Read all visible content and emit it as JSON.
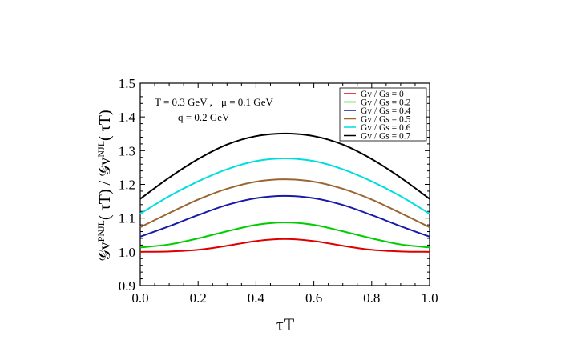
{
  "chart_data": {
    "type": "line",
    "xlabel": "τT",
    "ylabel": {
      "base1": "𝒢v",
      "sup1": "PNJL",
      "arg1": "( τT) / ",
      "base2": "𝒢v",
      "sup2": "NJL",
      "arg2": "( τT)"
    },
    "xlim": [
      0.0,
      1.0
    ],
    "ylim": [
      0.9,
      1.5
    ],
    "x_ticks": [
      "0.0",
      "0.2",
      "0.4",
      "0.6",
      "0.8",
      "1.0"
    ],
    "y_ticks": [
      "0.9",
      "1.0",
      "1.1",
      "1.2",
      "1.3",
      "1.4",
      "1.5"
    ],
    "annotations": {
      "line1_a": "T = 0.3 GeV ,",
      "line1_b": "μ = 0.1 GeV",
      "line2": "q = 0.2 GeV"
    },
    "legend_position": "top-right",
    "x": [
      0.0,
      0.1,
      0.2,
      0.3,
      0.4,
      0.5,
      0.6,
      0.7,
      0.8,
      0.9,
      1.0
    ],
    "series": [
      {
        "name": "Gv / Gs = 0",
        "color": "#dd0000",
        "values": [
          1.0,
          1.001,
          1.006,
          1.018,
          1.032,
          1.038,
          1.032,
          1.018,
          1.006,
          1.001,
          1.0
        ]
      },
      {
        "name": "Gv / Gs = 0.2",
        "color": "#00cc00",
        "values": [
          1.013,
          1.022,
          1.04,
          1.061,
          1.08,
          1.087,
          1.08,
          1.061,
          1.04,
          1.022,
          1.013
        ]
      },
      {
        "name": "Gv / Gs = 0.4",
        "color": "#1a1aaa",
        "values": [
          1.045,
          1.076,
          1.109,
          1.139,
          1.159,
          1.166,
          1.159,
          1.139,
          1.109,
          1.076,
          1.045
        ]
      },
      {
        "name": "Gv / Gs = 0.5",
        "color": "#996633",
        "values": [
          1.073,
          1.115,
          1.155,
          1.187,
          1.208,
          1.215,
          1.208,
          1.187,
          1.155,
          1.115,
          1.073
        ]
      },
      {
        "name": "Gv / Gs = 0.6",
        "color": "#00dddd",
        "values": [
          1.113,
          1.165,
          1.209,
          1.245,
          1.269,
          1.277,
          1.269,
          1.245,
          1.209,
          1.165,
          1.113
        ]
      },
      {
        "name": "Gv / Gs = 0.7",
        "color": "#000000",
        "values": [
          1.157,
          1.22,
          1.275,
          1.318,
          1.343,
          1.351,
          1.343,
          1.318,
          1.275,
          1.22,
          1.157
        ]
      }
    ]
  }
}
